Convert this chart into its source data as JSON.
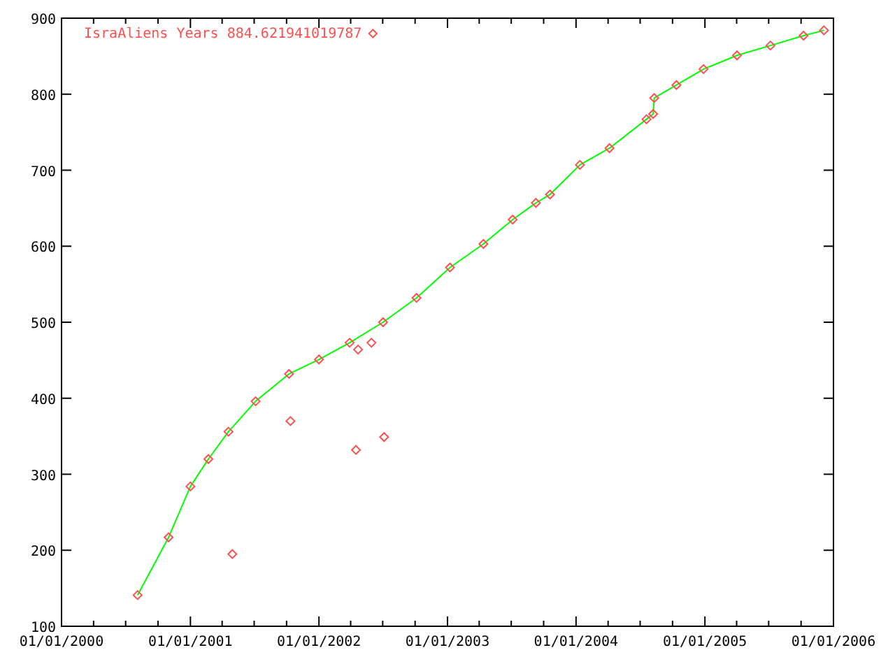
{
  "chart_data": {
    "type": "scatter",
    "xlim": [
      "2000-01-01",
      "2006-01-01"
    ],
    "ylim": [
      100,
      900
    ],
    "xticks": [
      {
        "value": "2000-01-01",
        "label": "01/01/2000"
      },
      {
        "value": "2000-04-01",
        "label": null
      },
      {
        "value": "2000-07-01",
        "label": null
      },
      {
        "value": "2000-10-01",
        "label": null
      },
      {
        "value": "2001-01-01",
        "label": "01/01/2001"
      },
      {
        "value": "2001-04-01",
        "label": null
      },
      {
        "value": "2001-07-01",
        "label": null
      },
      {
        "value": "2001-10-01",
        "label": null
      },
      {
        "value": "2002-01-01",
        "label": "01/01/2002"
      },
      {
        "value": "2002-04-01",
        "label": null
      },
      {
        "value": "2002-07-01",
        "label": null
      },
      {
        "value": "2002-10-01",
        "label": null
      },
      {
        "value": "2003-01-01",
        "label": "01/01/2003"
      },
      {
        "value": "2003-04-01",
        "label": null
      },
      {
        "value": "2003-07-01",
        "label": null
      },
      {
        "value": "2003-10-01",
        "label": null
      },
      {
        "value": "2004-01-01",
        "label": "01/01/2004"
      },
      {
        "value": "2004-04-01",
        "label": null
      },
      {
        "value": "2004-07-01",
        "label": null
      },
      {
        "value": "2004-10-01",
        "label": null
      },
      {
        "value": "2005-01-01",
        "label": "01/01/2005"
      },
      {
        "value": "2005-04-01",
        "label": null
      },
      {
        "value": "2005-07-01",
        "label": null
      },
      {
        "value": "2005-10-01",
        "label": null
      },
      {
        "value": "2006-01-01",
        "label": "01/01/2006"
      }
    ],
    "yticks": [
      100,
      200,
      300,
      400,
      500,
      600,
      700,
      800,
      900
    ],
    "grid": false,
    "legend": "top left",
    "series": [
      {
        "type": "line",
        "color": "#00ff00",
        "x": [
          "2000-08-04",
          "2000-10-31",
          "2001-01-01",
          "2001-02-21",
          "2001-04-19",
          "2001-07-05",
          "2001-10-08",
          "2002-01-01",
          "2002-03-29",
          "2002-07-02",
          "2002-10-05",
          "2003-01-08",
          "2003-04-13",
          "2003-07-05",
          "2003-09-09",
          "2003-10-19",
          "2004-01-12",
          "2004-04-05",
          "2004-07-19",
          "2004-08-07",
          "2004-08-10",
          "2004-10-12",
          "2004-12-28",
          "2005-04-02",
          "2005-07-06",
          "2005-10-08",
          "2005-12-05"
        ],
        "values": [
          141,
          217,
          284,
          320,
          356,
          396,
          432,
          451,
          473,
          500,
          532,
          572,
          603,
          635,
          657,
          668,
          707,
          729,
          767,
          774,
          795,
          812,
          833,
          851,
          864,
          877,
          884
        ]
      },
      {
        "type": "scatter",
        "marker": "diamond",
        "name": "IsraAliens Years 884.621941019787",
        "color": "#ff5050",
        "x": [
          "2000-08-04",
          "2000-10-31",
          "2001-01-01",
          "2001-02-21",
          "2001-04-19",
          "2001-04-30",
          "2001-07-05",
          "2001-10-08",
          "2001-10-12",
          "2002-01-01",
          "2002-03-29",
          "2002-04-16",
          "2002-04-22",
          "2002-05-30",
          "2002-07-02",
          "2002-07-05",
          "2002-10-05",
          "2003-01-08",
          "2003-04-13",
          "2003-07-05",
          "2003-09-09",
          "2003-10-19",
          "2004-01-12",
          "2004-04-05",
          "2004-07-19",
          "2004-08-07",
          "2004-08-10",
          "2004-10-12",
          "2004-12-28",
          "2005-04-02",
          "2005-07-06",
          "2005-10-08",
          "2005-12-05"
        ],
        "values": [
          141,
          217,
          284,
          320,
          356,
          195,
          396,
          432,
          370,
          451,
          473,
          332,
          464,
          473,
          500,
          349,
          532,
          572,
          603,
          635,
          657,
          668,
          707,
          729,
          767,
          774,
          795,
          812,
          833,
          851,
          864,
          877,
          884
        ]
      }
    ]
  }
}
